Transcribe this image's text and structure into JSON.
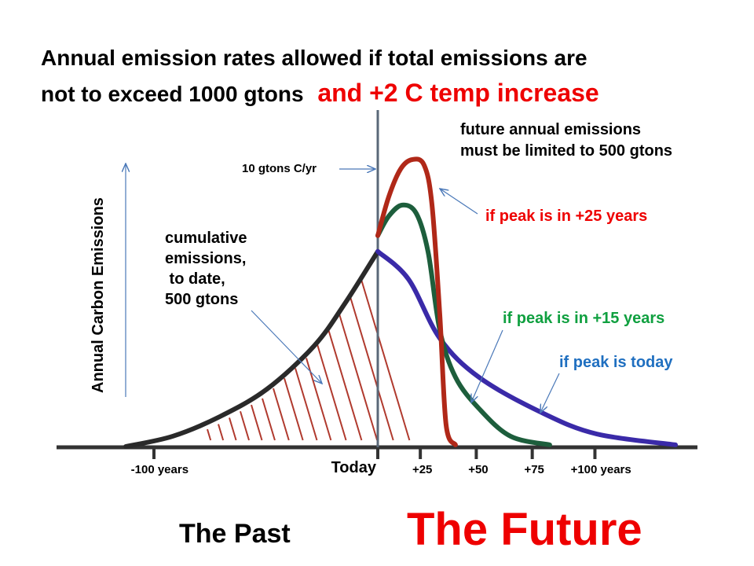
{
  "title": {
    "line1": "Annual emission rates allowed if total emissions are",
    "line2": "not to exceed 1000 gtons",
    "line2_red": "and +2 C temp increase"
  },
  "annotations": {
    "future": [
      "future annual emissions",
      "must be limited to 500 gtons"
    ],
    "rate": "10 gtons C/yr",
    "cumulative": [
      "cumulative",
      "emissions,",
      " to date,",
      "500 gtons"
    ],
    "peak25": "if peak is in +25 years",
    "peak15": "if peak is in +15 years",
    "peak_today": "if peak is today"
  },
  "footer": {
    "past": "The  Past",
    "future": "The Future"
  },
  "colors": {
    "red": "#ee0000",
    "green": "#10a040",
    "blue": "#1f6fc0"
  },
  "chart_data": {
    "type": "line",
    "ylabel": "Annual Carbon Emissions",
    "xlabel": "",
    "x_tick_labels": [
      {
        "year": -100,
        "label": "-100 years"
      },
      {
        "year": 0,
        "label": "Today"
      },
      {
        "year": 19,
        "label": "+25"
      },
      {
        "year": 44,
        "label": "+50"
      },
      {
        "year": 69,
        "label": "+75"
      },
      {
        "year": 97,
        "label": "+100 years"
      }
    ],
    "series": [
      {
        "name": "past emissions",
        "color": "#2a2a2a",
        "points": [
          [
            -112.6,
            0
          ],
          [
            -91.6,
            0.37
          ],
          [
            -70.5,
            1.08
          ],
          [
            -49.5,
            2.07
          ],
          [
            -28.4,
            3.63
          ],
          [
            -14.4,
            5.19
          ],
          [
            0,
            7.03
          ]
        ]
      },
      {
        "name": "if peak is today",
        "color": "#3a2aa8",
        "points": [
          [
            0,
            7.03
          ],
          [
            13.7,
            6.03
          ],
          [
            27.7,
            3.9
          ],
          [
            45.3,
            2.49
          ],
          [
            73.3,
            1.22
          ],
          [
            97.9,
            0.45
          ],
          [
            133,
            0.06
          ]
        ]
      },
      {
        "name": "if peak is in +15 years",
        "color": "#1d5e3c",
        "points": [
          [
            0,
            7.6
          ],
          [
            4.9,
            8.3
          ],
          [
            10.9,
            8.7
          ],
          [
            17.2,
            8.4
          ],
          [
            22.5,
            7.0
          ],
          [
            27.7,
            4.2
          ],
          [
            34.7,
            2.5
          ],
          [
            45.3,
            1.36
          ],
          [
            59.3,
            0.37
          ],
          [
            76.8,
            0.06
          ]
        ]
      },
      {
        "name": "if peak is in +25 years",
        "color": "#b02818",
        "points": [
          [
            0,
            7.6
          ],
          [
            4.9,
            9.0
          ],
          [
            10.2,
            10.0
          ],
          [
            15.4,
            10.34
          ],
          [
            20.7,
            10.14
          ],
          [
            24.2,
            8.72
          ],
          [
            27.7,
            4.76
          ],
          [
            30.5,
            0.79
          ],
          [
            34.7,
            0.06
          ]
        ]
      }
    ]
  }
}
